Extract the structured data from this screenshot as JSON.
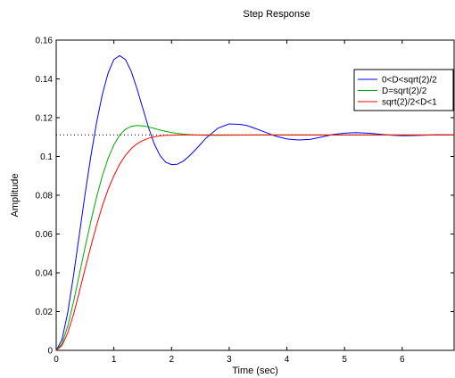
{
  "chart_data": {
    "type": "line",
    "title": "Step Response",
    "xlabel": "Time (sec)",
    "ylabel": "Amplitude",
    "xlim": [
      0,
      6.9
    ],
    "ylim": [
      0,
      0.16
    ],
    "xticks": [
      0,
      1,
      2,
      3,
      4,
      5,
      6
    ],
    "yticks": [
      0,
      0.02,
      0.04,
      0.06,
      0.08,
      0.1,
      0.12,
      0.14,
      0.16
    ],
    "xtick_labels": [
      "0",
      "1",
      "2",
      "3",
      "4",
      "5",
      "6"
    ],
    "ytick_labels": [
      "0",
      "0.02",
      "0.04",
      "0.06",
      "0.08",
      "0.1",
      "0.12",
      "0.14",
      "0.16"
    ],
    "steady_state": 0.1111,
    "grid": false,
    "legend_position": "top-right",
    "series": [
      {
        "name": "0<D<sqrt(2)/2",
        "color": "#0000ff",
        "x": [
          0,
          0.1,
          0.2,
          0.3,
          0.4,
          0.5,
          0.6,
          0.7,
          0.8,
          0.9,
          1.0,
          1.1,
          1.2,
          1.3,
          1.4,
          1.5,
          1.6,
          1.7,
          1.8,
          1.9,
          2.0,
          2.1,
          2.2,
          2.3,
          2.4,
          2.6,
          2.8,
          3.0,
          3.2,
          3.3,
          3.4,
          3.6,
          3.8,
          4.0,
          4.2,
          4.4,
          4.6,
          4.8,
          5.0,
          5.2,
          5.4,
          5.5,
          5.6,
          5.8,
          6.0,
          6.2,
          6.4,
          6.6,
          6.9
        ],
        "y": [
          0,
          0.0055,
          0.0195,
          0.0385,
          0.0595,
          0.0805,
          0.1,
          0.1175,
          0.132,
          0.143,
          0.15,
          0.152,
          0.15,
          0.144,
          0.135,
          0.125,
          0.115,
          0.1065,
          0.1005,
          0.097,
          0.0958,
          0.096,
          0.0975,
          0.1,
          0.103,
          0.1095,
          0.1145,
          0.1168,
          0.1165,
          0.116,
          0.115,
          0.1128,
          0.1105,
          0.109,
          0.1085,
          0.1088,
          0.11,
          0.1113,
          0.112,
          0.1123,
          0.112,
          0.1118,
          0.1115,
          0.111,
          0.1107,
          0.1108,
          0.111,
          0.1112,
          0.1111
        ]
      },
      {
        "name": "D=sqrt(2)/2",
        "color": "#00aa00",
        "x": [
          0,
          0.1,
          0.2,
          0.3,
          0.4,
          0.5,
          0.6,
          0.7,
          0.8,
          0.9,
          1.0,
          1.1,
          1.2,
          1.3,
          1.4,
          1.5,
          1.6,
          1.7,
          1.8,
          2.0,
          2.2,
          2.4,
          2.6,
          2.8,
          3.0,
          3.5,
          4.0,
          5.0,
          6.0,
          6.9
        ],
        "y": [
          0,
          0.0035,
          0.0125,
          0.025,
          0.039,
          0.053,
          0.0665,
          0.079,
          0.09,
          0.099,
          0.106,
          0.111,
          0.114,
          0.1155,
          0.116,
          0.1158,
          0.1152,
          0.1145,
          0.1136,
          0.1123,
          0.1115,
          0.1111,
          0.1109,
          0.1109,
          0.111,
          0.1111,
          0.1111,
          0.1111,
          0.1111,
          0.1111
        ]
      },
      {
        "name": "sqrt(2)/2<D<1",
        "color": "#ff0000",
        "x": [
          0,
          0.1,
          0.2,
          0.3,
          0.4,
          0.5,
          0.6,
          0.7,
          0.8,
          0.9,
          1.0,
          1.1,
          1.2,
          1.3,
          1.4,
          1.5,
          1.6,
          1.7,
          1.8,
          1.9,
          2.0,
          2.2,
          2.4,
          2.6,
          2.8,
          3.0,
          3.5,
          4.0,
          5.0,
          6.0,
          6.9
        ],
        "y": [
          0,
          0.0025,
          0.009,
          0.0185,
          0.03,
          0.042,
          0.0535,
          0.0645,
          0.0745,
          0.083,
          0.09,
          0.096,
          0.1005,
          0.104,
          0.1065,
          0.1082,
          0.1094,
          0.1101,
          0.1106,
          0.1109,
          0.111,
          0.1111,
          0.1111,
          0.1111,
          0.1111,
          0.1111,
          0.1111,
          0.1111,
          0.1111,
          0.1111,
          0.1111
        ]
      }
    ]
  }
}
